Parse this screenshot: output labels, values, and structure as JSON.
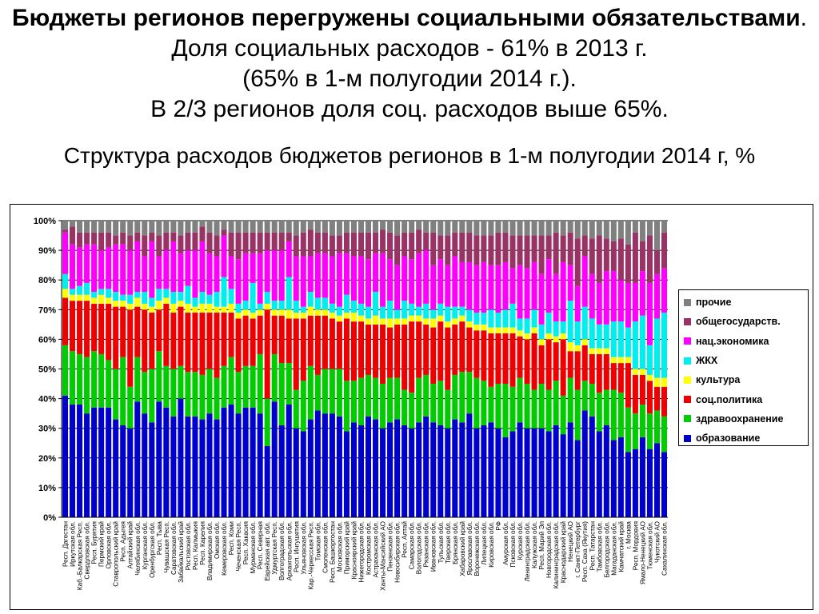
{
  "slide": {
    "title_bold": "Бюджеты регионов перегружены социальными обязательствами",
    "title_rest": ". Доля социальных расходов - 61% в 2013 г.",
    "title_line3": "(65% в 1-м полугодии 2014 г.).",
    "title_line4": "В 2/3 регионов доля соц. расходов выше 65%."
  },
  "chart_data": {
    "type": "bar",
    "stacked": true,
    "title": "Структура расходов бюджетов регионов в 1-м полугодии 2014 г, %",
    "ylim": [
      0,
      100
    ],
    "yticks": [
      "0%",
      "10%",
      "20%",
      "30%",
      "40%",
      "50%",
      "60%",
      "70%",
      "80%",
      "90%",
      "100%"
    ],
    "grid": "horizontal",
    "legend_position": "right",
    "categories": [
      "Респ. Дагестан",
      "Иркутская обл.",
      "Каб.-Балкарская Респ.",
      "Свердловская обл.",
      "Респ. Бурятия",
      "Пермский край",
      "Орловская обл.",
      "Ставропольский край",
      "Респ. Адыгея",
      "Алтайский край",
      "Челябинская обл.",
      "Курганская обл.",
      "Оренбургская обл.",
      "Респ. Тыва",
      "Чувашская Респ.",
      "Саратовская обл.",
      "Забайкальский край",
      "Ростовская обл.",
      "Респ. Калмыкия",
      "Респ. Карелия",
      "Владимирская обл.",
      "Омская обл.",
      "Кемеровская обл.",
      "Респ. Коми",
      "Чеченская Респ.",
      "Респ. Хакасия",
      "Мурманская обл.",
      "Респ. Северная",
      "Еврейская авт. обл.",
      "Удмуртская Респ.",
      "Волгоградская обл.",
      "Архангельская обл.",
      "Респ. Ингушетия",
      "Ульяновская обл.",
      "Кар.-Черкесская Респ.",
      "Томская обл.",
      "Смоленская обл.",
      "Респ. Башкортостан",
      "Московская обл.",
      "Приморский край",
      "Красноярский край",
      "Нижегородская обл.",
      "Костромская обл.",
      "Астраханская обл.",
      "Ханты-Мансийский АО",
      "Пензенская обл.",
      "Новосибирская обл.",
      "Респ. Алтай",
      "Самарская обл.",
      "Вологодская обл.",
      "Рязанская обл.",
      "Ивановская обл.",
      "Тульская обл.",
      "Тверская обл.",
      "Брянская обл.",
      "Хабаровский край",
      "Ярославская обл.",
      "Воронежская обл.",
      "Липецкая обл.",
      "Кировская обл.",
      "РФ",
      "Амурская обл.",
      "Псковская обл.",
      "Курская обл.",
      "Ленинградская обл.",
      "Калужская обл.",
      "Респ. Марий Эл",
      "Новгородская обл.",
      "Калининградская обл.",
      "Краснодарский край",
      "Ненецкий АО",
      "г. Санкт-Петербург",
      "Респ. Саха (Якутия)",
      "Респ. Татарстан",
      "Тамбовская обл.",
      "Белгородская обл.",
      "Магаданская обл.",
      "Камчатский край",
      "г. Москва",
      "Респ. Мордовия",
      "Ямало-Ненецкий АО",
      "Тюменская обл.",
      "Чукотский АО",
      "Сахалинская обл."
    ],
    "series": [
      {
        "name": "образование",
        "color": "#0000cc",
        "values": [
          41,
          38,
          38,
          35,
          37,
          37,
          37,
          33,
          31,
          30,
          39,
          35,
          32,
          39,
          37,
          34,
          40,
          34,
          34,
          33,
          35,
          33,
          37,
          38,
          35,
          37,
          37,
          35,
          24,
          39,
          31,
          38,
          30,
          29,
          33,
          36,
          35,
          35,
          34,
          29,
          32,
          31,
          34,
          33,
          30,
          32,
          33,
          31,
          30,
          32,
          34,
          32,
          31,
          30,
          33,
          32,
          35,
          30,
          31,
          32,
          30,
          27,
          29,
          32,
          30,
          30,
          30,
          29,
          31,
          28,
          32,
          26,
          36,
          34,
          29,
          31,
          26,
          27,
          22,
          23,
          27,
          23,
          25,
          22
        ]
      },
      {
        "name": "здравоохранение",
        "color": "#00cc00",
        "values": [
          17,
          18,
          17,
          19,
          19,
          18,
          16,
          17,
          23,
          14,
          15,
          14,
          18,
          17,
          14,
          16,
          11,
          15,
          15,
          15,
          15,
          14,
          14,
          16,
          14,
          14,
          14,
          20,
          16,
          16,
          21,
          14,
          13,
          17,
          18,
          12,
          15,
          15,
          16,
          17,
          14,
          16,
          14,
          14,
          15,
          15,
          14,
          12,
          12,
          15,
          14,
          13,
          15,
          13,
          15,
          17,
          14,
          17,
          15,
          12,
          15,
          18,
          15,
          15,
          15,
          13,
          15,
          14,
          15,
          13,
          15,
          17,
          10,
          11,
          13,
          12,
          17,
          15,
          15,
          12,
          11,
          12,
          11,
          12
        ]
      },
      {
        "name": "соц.политика",
        "color": "#ee0000",
        "values": [
          16,
          17,
          18,
          19,
          16,
          17,
          19,
          21,
          17,
          26,
          17,
          21,
          19,
          14,
          21,
          19,
          20,
          20,
          20,
          21,
          19,
          22,
          18,
          15,
          18,
          17,
          16,
          13,
          30,
          13,
          16,
          15,
          24,
          21,
          17,
          20,
          18,
          17,
          16,
          21,
          20,
          19,
          17,
          18,
          20,
          17,
          18,
          22,
          24,
          19,
          17,
          19,
          20,
          21,
          17,
          17,
          15,
          16,
          17,
          18,
          17,
          17,
          18,
          14,
          15,
          19,
          13,
          17,
          13,
          19,
          9,
          13,
          12,
          10,
          13,
          12,
          9,
          10,
          15,
          13,
          10,
          11,
          8,
          10
        ]
      },
      {
        "name": "культура",
        "color": "#ffff00",
        "values": [
          3,
          2,
          2,
          2,
          2,
          3,
          2,
          2,
          2,
          2,
          3,
          2,
          2,
          3,
          2,
          3,
          2,
          3,
          2,
          3,
          3,
          2,
          2,
          3,
          2,
          2,
          2,
          2,
          2,
          2,
          2,
          3,
          2,
          2,
          3,
          2,
          2,
          2,
          2,
          2,
          3,
          2,
          2,
          3,
          2,
          3,
          2,
          2,
          2,
          2,
          2,
          3,
          2,
          2,
          2,
          2,
          2,
          2,
          2,
          2,
          2,
          2,
          2,
          2,
          2,
          2,
          2,
          2,
          2,
          2,
          3,
          2,
          2,
          2,
          2,
          2,
          2,
          2,
          2,
          2,
          2,
          2,
          3,
          3
        ]
      },
      {
        "name": "ЖКХ",
        "color": "#00eeee",
        "values": [
          5,
          2,
          3,
          4,
          2,
          2,
          3,
          3,
          2,
          3,
          2,
          4,
          3,
          4,
          3,
          4,
          3,
          6,
          3,
          4,
          3,
          5,
          10,
          5,
          3,
          3,
          10,
          2,
          4,
          3,
          3,
          11,
          4,
          2,
          5,
          4,
          4,
          3,
          3,
          6,
          4,
          4,
          4,
          8,
          4,
          6,
          3,
          6,
          4,
          3,
          5,
          3,
          4,
          5,
          4,
          3,
          4,
          4,
          4,
          6,
          5,
          6,
          8,
          4,
          5,
          6,
          5,
          7,
          5,
          4,
          14,
          8,
          11,
          10,
          8,
          8,
          12,
          12,
          10,
          16,
          18,
          10,
          20,
          22
        ]
      },
      {
        "name": "нац.экономика",
        "color": "#ff00ff",
        "values": [
          14,
          15,
          13,
          13,
          16,
          13,
          14,
          16,
          17,
          15,
          17,
          12,
          19,
          11,
          13,
          17,
          13,
          12,
          16,
          17,
          14,
          12,
          14,
          11,
          15,
          16,
          10,
          17,
          14,
          17,
          17,
          12,
          15,
          17,
          12,
          15,
          15,
          16,
          18,
          14,
          15,
          16,
          16,
          13,
          18,
          14,
          15,
          15,
          15,
          18,
          18,
          15,
          15,
          14,
          17,
          15,
          16,
          16,
          17,
          15,
          16,
          16,
          12,
          18,
          17,
          16,
          17,
          18,
          16,
          20,
          12,
          12,
          17,
          15,
          14,
          18,
          17,
          14,
          15,
          13,
          15,
          21,
          15,
          15
        ]
      },
      {
        "name": "общегосударств.",
        "color": "#993366",
        "values": [
          1,
          6,
          5,
          4,
          4,
          6,
          5,
          3,
          4,
          5,
          3,
          7,
          3,
          7,
          6,
          3,
          6,
          6,
          6,
          5,
          7,
          7,
          2,
          8,
          9,
          7,
          7,
          7,
          6,
          6,
          6,
          3,
          7,
          8,
          9,
          7,
          7,
          7,
          6,
          7,
          8,
          8,
          9,
          7,
          8,
          9,
          10,
          8,
          9,
          8,
          6,
          11,
          8,
          10,
          8,
          10,
          10,
          10,
          9,
          10,
          11,
          10,
          11,
          10,
          11,
          9,
          13,
          8,
          14,
          9,
          11,
          16,
          7,
          12,
          16,
          11,
          10,
          14,
          13,
          17,
          10,
          16,
          8,
          12
        ]
      },
      {
        "name": "прочие",
        "color": "#808080",
        "values": [
          3,
          2,
          4,
          4,
          4,
          4,
          4,
          5,
          4,
          5,
          4,
          5,
          4,
          5,
          4,
          4,
          5,
          4,
          4,
          2,
          4,
          5,
          3,
          4,
          4,
          4,
          4,
          4,
          4,
          4,
          4,
          4,
          5,
          4,
          3,
          4,
          4,
          5,
          5,
          4,
          4,
          4,
          4,
          4,
          3,
          4,
          5,
          4,
          4,
          3,
          4,
          4,
          5,
          5,
          4,
          4,
          4,
          5,
          5,
          5,
          4,
          4,
          5,
          5,
          5,
          5,
          5,
          5,
          4,
          5,
          4,
          6,
          5,
          6,
          5,
          6,
          7,
          6,
          8,
          4,
          7,
          5,
          10,
          4
        ]
      }
    ]
  }
}
